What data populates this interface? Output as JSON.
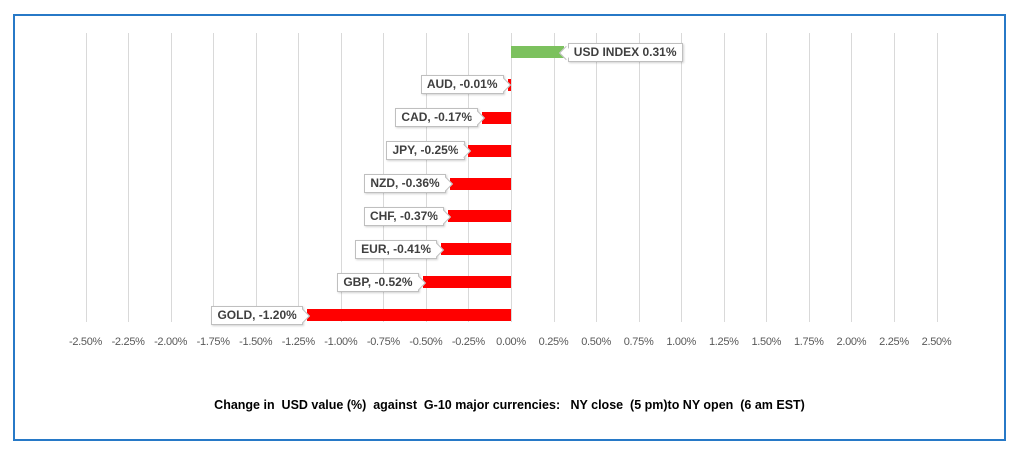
{
  "window": {
    "background_color": "#FFFFFF",
    "frame_border_color": "#2779C7"
  },
  "chart_data": {
    "type": "bar",
    "orientation": "horizontal",
    "title": "Change in  USD value (%)  against  G-10 major currencies:   NY close  (5 pm)to NY open  (6 am EST)",
    "categories": [
      "USD INDEX",
      "AUD",
      "CAD",
      "JPY",
      "NZD",
      "CHF",
      "EUR",
      "GBP",
      "GOLD"
    ],
    "values": [
      0.31,
      -0.01,
      -0.17,
      -0.25,
      -0.36,
      -0.37,
      -0.41,
      -0.52,
      -1.2
    ],
    "data_labels": [
      "USD INDEX 0.31%",
      "AUD, -0.01%",
      "CAD, -0.17%",
      "JPY, -0.25%",
      "NZD, -0.36%",
      "CHF, -0.37%",
      "EUR, -0.41%",
      "GBP, -0.52%",
      "GOLD, -1.20%"
    ],
    "xlabel": "",
    "ylabel": "",
    "xlim": [
      -2.5,
      2.5
    ],
    "tick_step": 0.25,
    "x_tick_labels": [
      "-2.50%",
      "-2.25%",
      "-2.00%",
      "-1.75%",
      "-1.50%",
      "-1.25%",
      "-1.00%",
      "-0.75%",
      "-0.50%",
      "-0.25%",
      "0.00%",
      "0.25%",
      "0.50%",
      "0.75%",
      "1.00%",
      "1.25%",
      "1.50%",
      "1.75%",
      "2.00%",
      "2.25%",
      "2.50%"
    ],
    "grid": true,
    "legend": false,
    "colors": {
      "positive_bar": "#7CC15E",
      "negative_bar": "#FF0000",
      "gridline": "#D9D9D9",
      "axis_text": "#595959",
      "label_text": "#3F3F3F",
      "label_border": "#BFBFBF",
      "title_text": "#000000"
    }
  }
}
